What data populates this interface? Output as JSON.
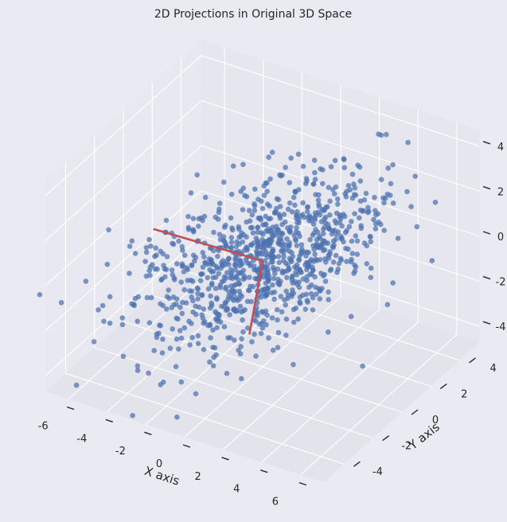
{
  "chart_data": {
    "type": "scatter",
    "projection": "3d",
    "title": "2D Projections in Original 3D Space",
    "xlabel": "X axis",
    "ylabel": "Y axis",
    "zlabel": "",
    "xlim": [
      -7.2,
      7.2
    ],
    "ylim": [
      -5.4,
      5.4
    ],
    "zlim": [
      -4.7,
      4.7
    ],
    "x_ticks": [
      "-6",
      "-4",
      "-2",
      "0",
      "2",
      "4",
      "6"
    ],
    "y_ticks": [
      "-4",
      "-2",
      "0",
      "2",
      "4"
    ],
    "z_ticks": [
      "-4",
      "-2",
      "0",
      "2",
      "4"
    ],
    "grid": true,
    "point_count": 1000,
    "point_distribution": "correlated Gaussian cloud centered at origin, spread std approx 2",
    "point_color": "#4c72b0",
    "pane_color": "#eaeaf2",
    "vectors": [
      {
        "from": [
          0,
          0,
          0
        ],
        "to": [
          -5.5,
          -0.2,
          0
        ],
        "color": "#c44e52"
      },
      {
        "from": [
          0,
          0,
          0
        ],
        "to": [
          2.6,
          -4.4,
          0
        ],
        "color": "#c44e52"
      }
    ]
  }
}
